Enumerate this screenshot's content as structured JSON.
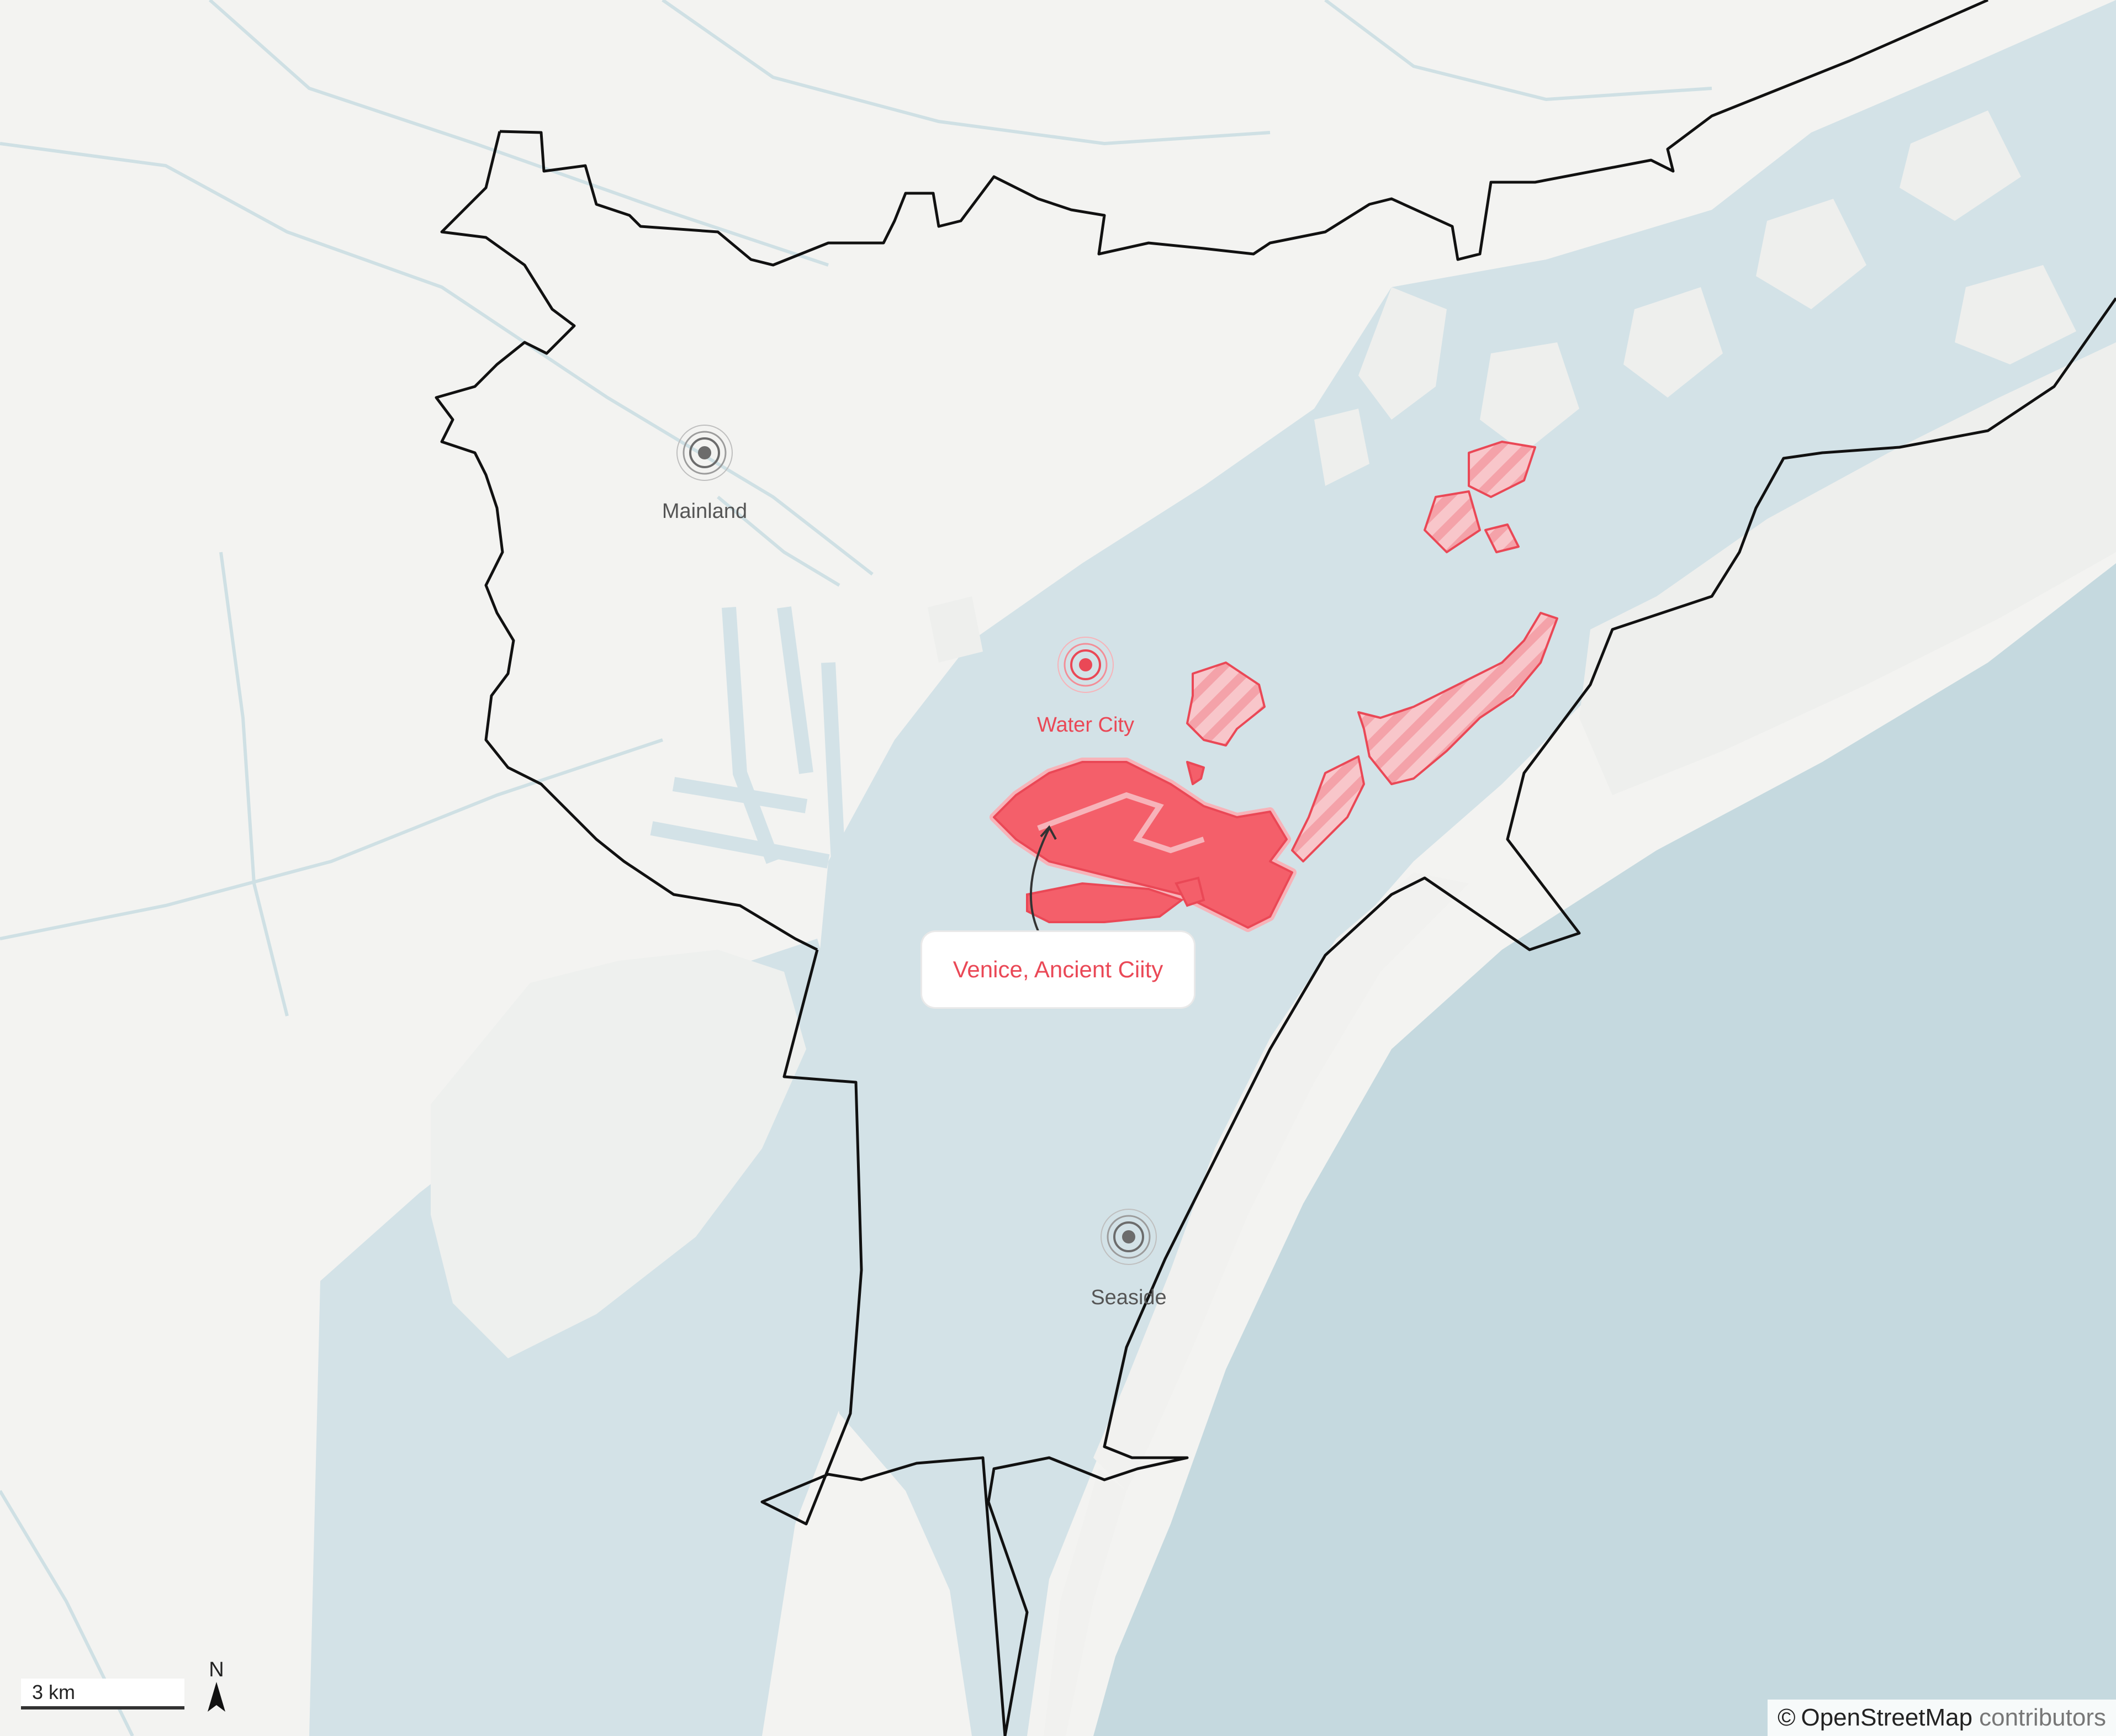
{
  "map": {
    "places": [
      {
        "id": "mainland",
        "label": "Mainland",
        "style": "neutral"
      },
      {
        "id": "water-city",
        "label": "Water City",
        "style": "highlight"
      },
      {
        "id": "seaside",
        "label": "Seaside",
        "style": "neutral"
      }
    ],
    "callout": {
      "label": "Venice, Ancient Ciity"
    },
    "scale": {
      "label": "3 km"
    },
    "north": {
      "label": "N"
    },
    "attribution": {
      "symbol": "©",
      "source": "OpenStreetMap",
      "suffix": "contributors"
    },
    "colors": {
      "land": "#f3f3f1",
      "water": "#d3e2e7",
      "sea": "#c5d9df",
      "boundary": "#111111",
      "highlight": "#f45f6a",
      "highlight_text": "#ea4856",
      "neutral_marker": "#6c6c6c"
    }
  }
}
